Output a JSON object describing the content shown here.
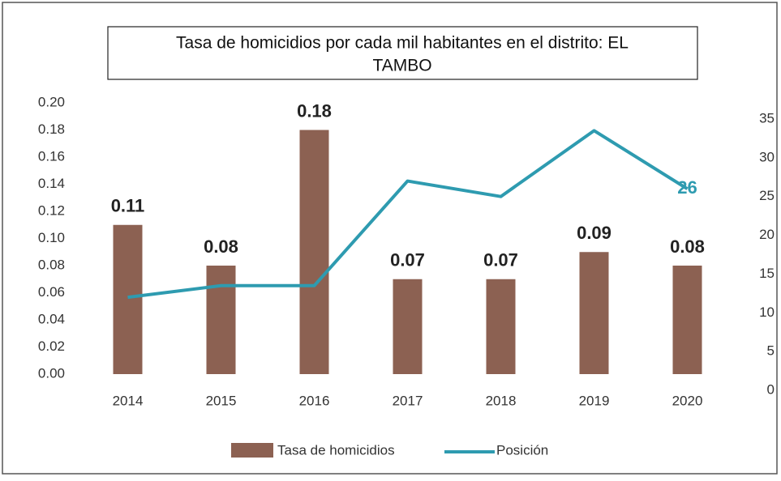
{
  "chart_data": {
    "type": "bar_line",
    "title": [
      "Tasa de homicidios por cada mil habitantes en el distrito: EL",
      "TAMBO"
    ],
    "categories": [
      "2014",
      "2015",
      "2016",
      "2017",
      "2018",
      "2019",
      "2020"
    ],
    "series": [
      {
        "name": "Tasa de homicidios",
        "color": "#8c6152",
        "type": "bar",
        "values": [
          0.11,
          0.08,
          0.18,
          0.07,
          0.07,
          0.09,
          0.08
        ]
      },
      {
        "name": "Posición",
        "color": "#2e9bb0",
        "type": "line",
        "axis": "y2",
        "data_labels": "last",
        "values": [
          12,
          13.5,
          13.5,
          27,
          25,
          33.5,
          26
        ]
      }
    ],
    "ylim": [
      0,
      0.2
    ],
    "yticks": [
      {
        "value": 0,
        "label": "0.00"
      },
      0.02,
      0.04,
      0.06,
      0.08,
      {
        "value": 0.1,
        "label": "0.10"
      },
      0.12,
      0.14,
      0.16,
      0.18,
      {
        "value": 0.2,
        "label": "0.20"
      }
    ],
    "y2lim": [
      0,
      35
    ],
    "y2ticks": [
      0,
      5,
      10,
      15,
      20,
      25,
      30,
      35
    ],
    "legend": "bottom"
  }
}
